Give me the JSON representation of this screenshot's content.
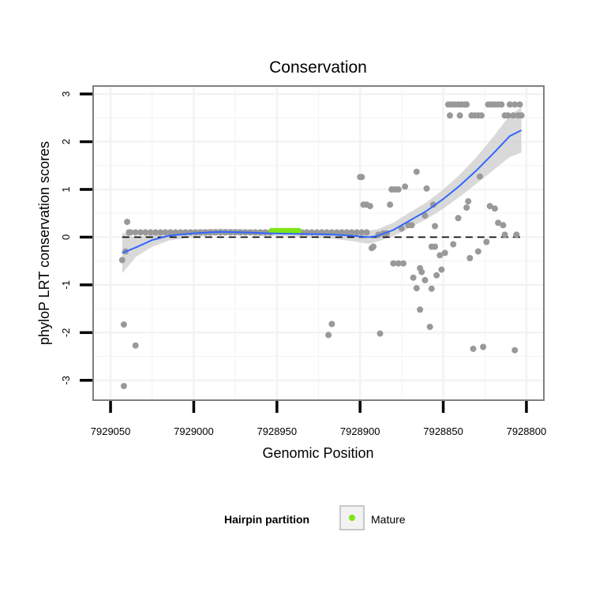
{
  "chart_data": {
    "type": "scatter",
    "title": "Conservation",
    "xlabel": "Genomic Position",
    "ylabel": "phyloP LRT conservation scores",
    "xlim": [
      7929060,
      7928790
    ],
    "ylim": [
      -3.4,
      3.15
    ],
    "x_reversed": true,
    "x_ticks": [
      7929050,
      7929000,
      7928950,
      7928900,
      7928850,
      7928800
    ],
    "x_tick_labels": [
      "7929050",
      "7929000",
      "7928950",
      "7928900",
      "7928850",
      "7928800"
    ],
    "y_ticks": [
      -3,
      -2,
      -1,
      0,
      1,
      2,
      3
    ],
    "y_tick_labels": [
      "-3",
      "-2",
      "-1",
      "0",
      "1",
      "2",
      "3"
    ],
    "grid": true,
    "reference_line": {
      "y": 0,
      "style": "dashed"
    },
    "series": [
      {
        "name": "Hairpin",
        "color": "#999999",
        "points": [
          [
            7929043,
            -0.48
          ],
          [
            7929042,
            -1.83
          ],
          [
            7929041,
            -0.3
          ],
          [
            7929040,
            0.32
          ],
          [
            7929039,
            0.1
          ],
          [
            7929042,
            -3.12
          ],
          [
            7929035,
            -2.27
          ],
          [
            7929038,
            0.1
          ],
          [
            7929035,
            0.1
          ],
          [
            7929032,
            0.1
          ],
          [
            7929029,
            0.1
          ],
          [
            7929026,
            0.1
          ],
          [
            7929023,
            0.1
          ],
          [
            7929020,
            0.1
          ],
          [
            7929017,
            0.1
          ],
          [
            7929014,
            0.1
          ],
          [
            7929011,
            0.1
          ],
          [
            7929008,
            0.1
          ],
          [
            7929005,
            0.1
          ],
          [
            7929002,
            0.1
          ],
          [
            7928999,
            0.1
          ],
          [
            7928996,
            0.1
          ],
          [
            7928993,
            0.1
          ],
          [
            7928990,
            0.1
          ],
          [
            7928987,
            0.1
          ],
          [
            7928984,
            0.1
          ],
          [
            7928981,
            0.1
          ],
          [
            7928978,
            0.1
          ],
          [
            7928975,
            0.1
          ],
          [
            7928972,
            0.1
          ],
          [
            7928969,
            0.1
          ],
          [
            7928966,
            0.1
          ],
          [
            7928963,
            0.1
          ],
          [
            7928960,
            0.1
          ],
          [
            7928957,
            0.1
          ],
          [
            7928954,
            0.1
          ],
          [
            7928935,
            0.1
          ],
          [
            7928932,
            0.1
          ],
          [
            7928929,
            0.1
          ],
          [
            7928926,
            0.1
          ],
          [
            7928923,
            0.1
          ],
          [
            7928920,
            0.1
          ],
          [
            7928917,
            0.1
          ],
          [
            7928914,
            0.1
          ],
          [
            7928911,
            0.1
          ],
          [
            7928908,
            0.1
          ],
          [
            7928905,
            0.1
          ],
          [
            7928902,
            0.1
          ],
          [
            7928899,
            0.1
          ],
          [
            7928896,
            0.1
          ],
          [
            7928919,
            -2.05
          ],
          [
            7928917,
            -1.82
          ],
          [
            7928900,
            1.26
          ],
          [
            7928899,
            1.26
          ],
          [
            7928898,
            0.68
          ],
          [
            7928896,
            0.68
          ],
          [
            7928894,
            0.65
          ],
          [
            7928893,
            -0.23
          ],
          [
            7928892,
            -0.2
          ],
          [
            7928889,
            0.05
          ],
          [
            7928888,
            -2.02
          ],
          [
            7928886,
            0.08
          ],
          [
            7928884,
            0.08
          ],
          [
            7928882,
            0.68
          ],
          [
            7928881,
            1.0
          ],
          [
            7928879,
            1.0
          ],
          [
            7928877,
            1.0
          ],
          [
            7928880,
            -0.55
          ],
          [
            7928877,
            -0.55
          ],
          [
            7928874,
            -0.55
          ],
          [
            7928875,
            0.18
          ],
          [
            7928873,
            1.06
          ],
          [
            7928871,
            0.25
          ],
          [
            7928869,
            0.25
          ],
          [
            7928868,
            -0.85
          ],
          [
            7928866,
            -1.07
          ],
          [
            7928866,
            1.37
          ],
          [
            7928864,
            -0.65
          ],
          [
            7928864,
            -1.52
          ],
          [
            7928863,
            -0.73
          ],
          [
            7928861,
            -0.9
          ],
          [
            7928861,
            0.45
          ],
          [
            7928860,
            1.02
          ],
          [
            7928858,
            -1.88
          ],
          [
            7928857,
            -1.08
          ],
          [
            7928857,
            -0.2
          ],
          [
            7928856,
            0.68
          ],
          [
            7928855,
            -0.2
          ],
          [
            7928855,
            0.23
          ],
          [
            7928854,
            -0.8
          ],
          [
            7928852,
            -0.38
          ],
          [
            7928851,
            -0.68
          ],
          [
            7928849,
            -0.33
          ],
          [
            7928847,
            2.78
          ],
          [
            7928846,
            2.55
          ],
          [
            7928845,
            2.78
          ],
          [
            7928843,
            2.78
          ],
          [
            7928841,
            2.78
          ],
          [
            7928839,
            2.78
          ],
          [
            7928837,
            2.78
          ],
          [
            7928836,
            2.78
          ],
          [
            7928844,
            -0.15
          ],
          [
            7928841,
            0.4
          ],
          [
            7928840,
            2.55
          ],
          [
            7928836,
            0.62
          ],
          [
            7928835,
            0.75
          ],
          [
            7928834,
            -0.44
          ],
          [
            7928833,
            2.55
          ],
          [
            7928831,
            2.55
          ],
          [
            7928829,
            2.55
          ],
          [
            7928827,
            2.55
          ],
          [
            7928832,
            -2.34
          ],
          [
            7928829,
            -0.3
          ],
          [
            7928828,
            1.27
          ],
          [
            7928826,
            -2.3
          ],
          [
            7928824,
            -0.1
          ],
          [
            7928823,
            2.78
          ],
          [
            7928821,
            2.78
          ],
          [
            7928819,
            2.78
          ],
          [
            7928817,
            2.78
          ],
          [
            7928815,
            2.78
          ],
          [
            7928822,
            0.65
          ],
          [
            7928819,
            0.6
          ],
          [
            7928817,
            0.3
          ],
          [
            7928814,
            0.25
          ],
          [
            7928813,
            2.55
          ],
          [
            7928811,
            2.55
          ],
          [
            7928810,
            2.78
          ],
          [
            7928808,
            2.55
          ],
          [
            7928807,
            2.78
          ],
          [
            7928805,
            2.55
          ],
          [
            7928804,
            2.78
          ],
          [
            7928813,
            0.05
          ],
          [
            7928807,
            -2.37
          ],
          [
            7928806,
            0.05
          ],
          [
            7928803,
            2.55
          ]
        ]
      },
      {
        "name": "Mature",
        "color": "#7FE517",
        "points": [
          [
            7928953,
            0.13
          ],
          [
            7928951,
            0.13
          ],
          [
            7928949,
            0.13
          ],
          [
            7928947,
            0.13
          ],
          [
            7928945,
            0.13
          ],
          [
            7928943,
            0.13
          ],
          [
            7928941,
            0.13
          ],
          [
            7928939,
            0.13
          ],
          [
            7928937,
            0.13
          ]
        ]
      }
    ],
    "smooth_line": {
      "color": "#3366FF",
      "ribbon_color": "#CCCCCC",
      "points": [
        [
          7929043,
          -0.33,
          -0.76,
          0.1
        ],
        [
          7929035,
          -0.22,
          -0.42,
          -0.02
        ],
        [
          7929025,
          -0.06,
          -0.2,
          0.08
        ],
        [
          7929015,
          0.03,
          -0.07,
          0.13
        ],
        [
          7929000,
          0.08,
          0.0,
          0.16
        ],
        [
          7928985,
          0.11,
          0.04,
          0.18
        ],
        [
          7928970,
          0.1,
          0.04,
          0.17
        ],
        [
          7928955,
          0.08,
          0.02,
          0.15
        ],
        [
          7928940,
          0.07,
          0.01,
          0.14
        ],
        [
          7928925,
          0.06,
          -0.01,
          0.13
        ],
        [
          7928915,
          0.05,
          -0.04,
          0.14
        ],
        [
          7928905,
          0.03,
          -0.08,
          0.14
        ],
        [
          7928895,
          0.0,
          -0.14,
          0.14
        ],
        [
          7928890,
          0.02,
          -0.1,
          0.16
        ],
        [
          7928880,
          0.15,
          0.02,
          0.3
        ],
        [
          7928870,
          0.35,
          0.2,
          0.52
        ],
        [
          7928860,
          0.55,
          0.38,
          0.73
        ],
        [
          7928850,
          0.8,
          0.6,
          1.0
        ],
        [
          7928840,
          1.08,
          0.85,
          1.31
        ],
        [
          7928830,
          1.4,
          1.12,
          1.68
        ],
        [
          7928820,
          1.75,
          1.4,
          2.1
        ],
        [
          7928810,
          2.12,
          1.68,
          2.56
        ],
        [
          7928803,
          2.24,
          1.77,
          2.72
        ]
      ]
    },
    "legend": {
      "title": "Hairpin partition",
      "placement": "bottom",
      "entries": [
        {
          "label": "Mature",
          "color": "#7FE517"
        }
      ]
    }
  }
}
